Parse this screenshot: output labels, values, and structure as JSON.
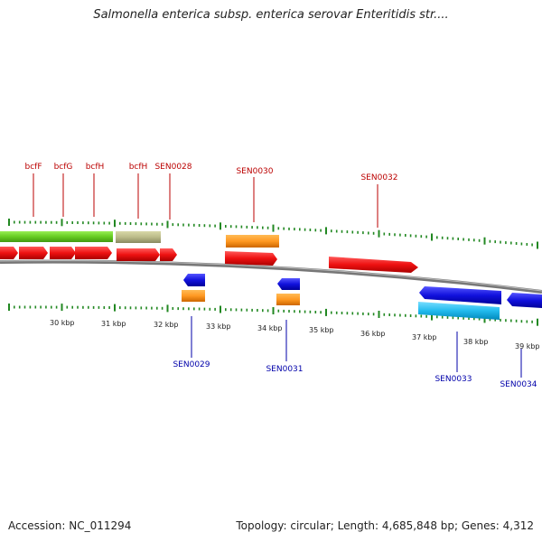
{
  "title": "Salmonella enterica subsp. enterica serovar Enteritidis str....",
  "footer": {
    "accession": "Accession: NC_011294",
    "topology": "Topology: circular; Length: 4,685,848 bp; Genes: 4,312"
  },
  "colors": {
    "forward_label": "#bb0000",
    "reverse_label": "#0000aa",
    "tick": "#228822",
    "backbone": "#888888",
    "red_gene": "#ee1111",
    "green_gene": "#66cc22",
    "olive_gene": "#bbbb88",
    "orange_gene": "#ff9922",
    "blue_gene": "#1111dd",
    "cyan_gene": "#22bbee"
  },
  "scale_labels": [
    "30 kbp",
    "31 kbp",
    "32 kbp",
    "33 kbp",
    "34 kbp",
    "35 kbp",
    "36 kbp",
    "37 kbp",
    "38 kbp",
    "39 kbp"
  ],
  "forward_gene_labels": [
    "bcfF",
    "bcfG",
    "bcfH",
    "bcfH",
    "SEN0028",
    "SEN0030",
    "SEN0032"
  ],
  "reverse_gene_labels": [
    "SEN0029",
    "SEN0031",
    "SEN0033",
    "SEN0034"
  ]
}
